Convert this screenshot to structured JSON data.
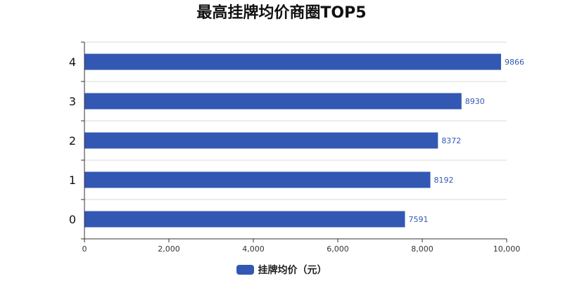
{
  "chart_data": {
    "type": "bar",
    "orientation": "horizontal",
    "title": "最高挂牌均价商圈TOP5",
    "categories": [
      "0",
      "1",
      "2",
      "3",
      "4"
    ],
    "series": [
      {
        "name": "挂牌均价（元）",
        "values": [
          7591,
          8192,
          8372,
          8930,
          9866
        ],
        "color": "#3358b3"
      }
    ],
    "xlim": [
      0,
      10000
    ],
    "x_ticks": [
      0,
      2000,
      4000,
      6000,
      8000,
      10000
    ],
    "x_tick_labels": [
      "0",
      "2,000",
      "4,000",
      "6,000",
      "8,000",
      "10,000"
    ],
    "grid": true,
    "legend_position": "bottom",
    "data_labels": true
  }
}
